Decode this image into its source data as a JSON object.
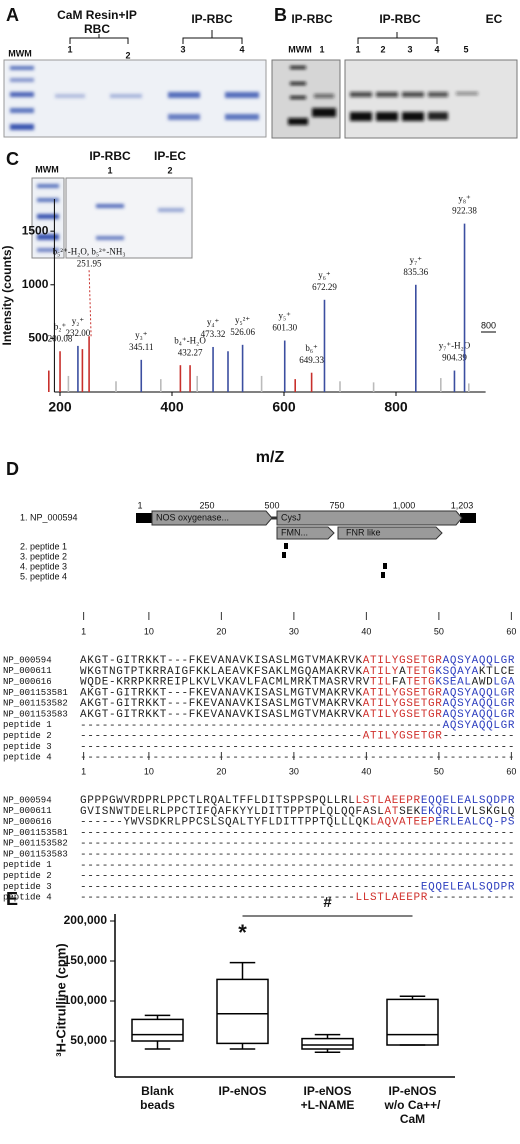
{
  "figure": {
    "A": {
      "label": "A",
      "header1": [
        "CaM Resin+IP",
        "RBC"
      ],
      "header2": "IP-RBC",
      "marker": "MWM",
      "lanes": [
        "1",
        "2",
        "3",
        "4"
      ]
    },
    "B": {
      "label": "B",
      "headers": [
        "IP-RBC",
        "IP-RBC",
        "EC"
      ],
      "marker": "MWM",
      "lanes": [
        "1",
        "1",
        "2",
        "3",
        "4",
        "5"
      ]
    },
    "C": {
      "label": "C",
      "inset": {
        "marker": "MWM",
        "headers": [
          "IP-RBC",
          "IP-EC"
        ],
        "lanes": [
          "1",
          "2"
        ]
      }
    },
    "D": {
      "label": "D",
      "protein": "1. NP_000594",
      "scale": [
        "1",
        "250",
        "500",
        "750",
        "1,000",
        "1,203"
      ],
      "domains": [
        "NOS oxygenase...",
        "CysJ",
        "FMN...",
        "FNR like"
      ],
      "peptides": [
        "2. peptide 1",
        "3. peptide 2",
        "4. peptide 3",
        "5. peptide 4"
      ],
      "alignments": [
        {
          "ruler": [
            1,
            10,
            20,
            30,
            40,
            50,
            60
          ],
          "rows": [
            {
              "name": "NP_000594",
              "segments": [
                {
                  "text": "AKGT-GITRKKT---FKEVANAVKISASLMGTVMAKRVK",
                  "color": "#222222"
                },
                {
                  "text": "ATILYGSETGR",
                  "color": "#d0312d"
                },
                {
                  "text": "AQSYAQQLGR",
                  "color": "#2e3fbf"
                }
              ]
            },
            {
              "name": "NP_000611",
              "segments": [
                {
                  "text": "WKGTNGTPTKRRAIGFKKLAEAVKFSAKLMGQAMAKRVK",
                  "color": "#222222"
                },
                {
                  "text": "ATILY",
                  "color": "#d0312d"
                },
                {
                  "text": "A",
                  "color": "#222222"
                },
                {
                  "text": "TETG",
                  "color": "#d0312d"
                },
                {
                  "text": "KSQAYA",
                  "color": "#2e3fbf"
                },
                {
                  "text": "KTLCE",
                  "color": "#222222"
                }
              ]
            },
            {
              "name": "NP_000616",
              "segments": [
                {
                  "text": "WQDE-KRRPKRREIPLKVLVKAVLFACMLMRKTMASRVRV",
                  "color": "#222222"
                },
                {
                  "text": "TIL",
                  "color": "#d0312d"
                },
                {
                  "text": "FA",
                  "color": "#222222"
                },
                {
                  "text": "TETG",
                  "color": "#d0312d"
                },
                {
                  "text": "KSEAL",
                  "color": "#2e3fbf"
                },
                {
                  "text": "AWD",
                  "color": "#222222"
                },
                {
                  "text": "LGA",
                  "color": "#2e3fbf"
                }
              ]
            },
            {
              "name": "NP_001153581",
              "segments": [
                {
                  "text": "AKGT-GITRKKT---FKEVANAVKISASLMGTVMAKRVK",
                  "color": "#222222"
                },
                {
                  "text": "ATILYGSETGR",
                  "color": "#d0312d"
                },
                {
                  "text": "AQSYAQQLGR",
                  "color": "#2e3fbf"
                }
              ]
            },
            {
              "name": "NP_001153582",
              "segments": [
                {
                  "text": "AKGT-GITRKKT---FKEVANAVKISASLMGTVMAKRVK",
                  "color": "#222222"
                },
                {
                  "text": "ATILYGSETGR",
                  "color": "#d0312d"
                },
                {
                  "text": "AQSYAQQLGR",
                  "color": "#2e3fbf"
                }
              ]
            },
            {
              "name": "NP_001153583",
              "segments": [
                {
                  "text": "AKGT-GITRKKT---FKEVANAVKISASLMGTVMAKRVK",
                  "color": "#222222"
                },
                {
                  "text": "ATILYGSETGR",
                  "color": "#d0312d"
                },
                {
                  "text": "AQSYAQQLGR",
                  "color": "#2e3fbf"
                }
              ]
            },
            {
              "name": "peptide 1",
              "segments": [
                {
                  "text": "--------------------------------------------------",
                  "color": "#222222"
                },
                {
                  "text": "AQSYAQQLGR",
                  "color": "#2e3fbf"
                }
              ]
            },
            {
              "name": "peptide 2",
              "segments": [
                {
                  "text": "---------------------------------------",
                  "color": "#222222"
                },
                {
                  "text": "ATILYGSETGR",
                  "color": "#d0312d"
                },
                {
                  "text": "----------",
                  "color": "#222222"
                }
              ]
            },
            {
              "name": "peptide 3",
              "segments": [
                {
                  "text": "------------------------------------------------------------",
                  "color": "#222222"
                }
              ]
            },
            {
              "name": "peptide 4",
              "segments": [
                {
                  "text": "------------------------------------------------------------",
                  "color": "#222222"
                }
              ]
            }
          ]
        },
        {
          "ruler": [
            1,
            10,
            20,
            30,
            40,
            50,
            60
          ],
          "rows": [
            {
              "name": "NP_000594",
              "segments": [
                {
                  "text": "GPPPGWVRDPRLPPCTLRQALTFFLDITSPPSPQLLRL",
                  "color": "#222222"
                },
                {
                  "text": "LSTLAEEPR",
                  "color": "#d0312d"
                },
                {
                  "text": "EQQELEALSQDPR",
                  "color": "#2e3fbf"
                }
              ]
            },
            {
              "name": "NP_000611",
              "segments": [
                {
                  "text": "GVISNWTDELRLPPCTIFQAFKYYLDITTPPTPLQLQQFASL",
                  "color": "#222222"
                },
                {
                  "text": "AT",
                  "color": "#d0312d"
                },
                {
                  "text": "SEK",
                  "color": "#222222"
                },
                {
                  "text": "EKQRL",
                  "color": "#2e3fbf"
                },
                {
                  "text": "LVLSKGLQ",
                  "color": "#222222"
                }
              ]
            },
            {
              "name": "NP_000616",
              "segments": [
                {
                  "text": "------YWVSDKRLPPCSLSQALTYFLDITTPPTQLLLQK",
                  "color": "#222222"
                },
                {
                  "text": "LAQVATEEP",
                  "color": "#d0312d"
                },
                {
                  "text": "ER",
                  "color": "#2e3fbf"
                },
                {
                  "text": "LEALCQ-PS",
                  "color": "#2e3fbf"
                }
              ]
            },
            {
              "name": "NP_001153581",
              "segments": [
                {
                  "text": "------------------------------------------------------------",
                  "color": "#222222"
                }
              ]
            },
            {
              "name": "NP_001153582",
              "segments": [
                {
                  "text": "------------------------------------------------------------",
                  "color": "#222222"
                }
              ]
            },
            {
              "name": "NP_001153583",
              "segments": [
                {
                  "text": "------------------------------------------------------------",
                  "color": "#222222"
                }
              ]
            },
            {
              "name": "peptide 1",
              "segments": [
                {
                  "text": "------------------------------------------------------------",
                  "color": "#222222"
                }
              ]
            },
            {
              "name": "peptide 2",
              "segments": [
                {
                  "text": "------------------------------------------------------------",
                  "color": "#222222"
                }
              ]
            },
            {
              "name": "peptide 3",
              "segments": [
                {
                  "text": "-----------------------------------------------",
                  "color": "#222222"
                },
                {
                  "text": "EQQELEALSQDPR",
                  "color": "#2e3fbf"
                }
              ]
            },
            {
              "name": "peptide 4",
              "segments": [
                {
                  "text": "--------------------------------------",
                  "color": "#222222"
                },
                {
                  "text": "LLSTLAEEPR",
                  "color": "#d0312d"
                },
                {
                  "text": "------------",
                  "color": "#222222"
                }
              ]
            }
          ]
        }
      ]
    },
    "E": {
      "label": "E"
    }
  },
  "chart_data": [
    {
      "type": "stem",
      "xlabel": "m/Z",
      "ylabel": "Intensity (counts)",
      "annotation": "800",
      "xlim": [
        190,
        960
      ],
      "xticks": [
        200,
        400,
        600,
        800
      ],
      "ylim": [
        0,
        1800
      ],
      "yticks": [
        500,
        1000,
        1500
      ],
      "x": [
        180,
        200.08,
        215,
        232,
        240,
        251.95,
        300,
        345.11,
        380,
        415,
        432.27,
        445,
        473.32,
        500,
        526.06,
        560,
        601.3,
        620,
        649.33,
        672.29,
        700,
        760,
        835.36,
        880,
        904.39,
        922.38,
        930
      ],
      "values": [
        200,
        380,
        150,
        430,
        400,
        520,
        100,
        300,
        120,
        250,
        250,
        150,
        420,
        380,
        440,
        150,
        480,
        120,
        180,
        860,
        100,
        90,
        1000,
        130,
        200,
        1570,
        80
      ],
      "colors": [
        "#c8302c",
        "#c8302c",
        "#bbbbbb",
        "#3b4ea0",
        "#c8302c",
        "#c8302c",
        "#bbbbbb",
        "#3b4ea0",
        "#bbbbbb",
        "#c8302c",
        "#c8302c",
        "#bbbbbb",
        "#3b4ea0",
        "#3b4ea0",
        "#3b4ea0",
        "#bbbbbb",
        "#3b4ea0",
        "#c8302c",
        "#c8302c",
        "#3b4ea0",
        "#bbbbbb",
        "#bbbbbb",
        "#3b4ea0",
        "#bbbbbb",
        "#3b4ea0",
        "#3b4ea0",
        "#bbbbbb"
      ],
      "ions": [
        null,
        "b₂⁺",
        null,
        "y₂⁺",
        null,
        "b₅²⁺-H₂O, b₅²⁺-NH₃",
        null,
        "y₃⁺",
        null,
        null,
        "b₄⁺-H₂O",
        null,
        "y₄⁺",
        null,
        "y₅²⁺",
        null,
        "y₅⁺",
        null,
        "b₆⁺",
        "y₆⁺",
        null,
        null,
        "y₇⁺",
        null,
        "y₇⁺-H₂O",
        "y₈⁺",
        null
      ],
      "x_labels": [
        null,
        "200.08",
        null,
        "232.00",
        null,
        "251.95",
        null,
        "345.11",
        null,
        null,
        "432.27",
        null,
        "473.32",
        null,
        "526.06",
        null,
        "601.30",
        null,
        "649.33",
        "672.29",
        null,
        null,
        "835.36",
        null,
        "904.39",
        "922.38",
        null
      ]
    },
    {
      "type": "box",
      "ylabel": "³H-Citrulline (cpm)",
      "color": "#000000",
      "categories": [
        [
          "Blank",
          "beads"
        ],
        [
          "IP-eNOS"
        ],
        [
          "IP-eNOS",
          "+L-NAME"
        ],
        [
          "IP-eNOS",
          "w/o Ca++/",
          "CaM"
        ]
      ],
      "ylim": [
        0,
        200000
      ],
      "yticks": [
        {
          "value": 50000,
          "label": "50,000"
        },
        {
          "value": 100000,
          "label": "100,000"
        },
        {
          "value": 150000,
          "label": "150,000"
        },
        {
          "value": 200000,
          "label": "200,000"
        }
      ],
      "boxes": [
        {
          "min": 40000,
          "q1": 50000,
          "median": 58000,
          "q3": 77000,
          "max": 82000
        },
        {
          "min": 40000,
          "q1": 47000,
          "median": 84000,
          "q3": 127000,
          "max": 148000
        },
        {
          "min": 36000,
          "q1": 40000,
          "median": 45000,
          "q3": 53000,
          "max": 58000
        },
        {
          "min": 45000,
          "q1": 45000,
          "median": 58000,
          "q3": 102000,
          "max": 106000
        }
      ],
      "annotations": [
        "*",
        "#"
      ]
    }
  ]
}
